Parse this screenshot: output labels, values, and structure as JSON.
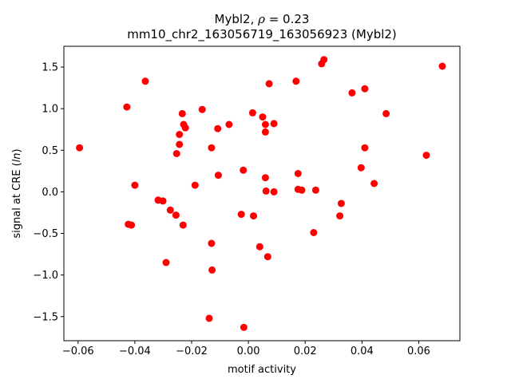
{
  "chart_data": {
    "type": "scatter",
    "title_line1": "Mybl2, ",
    "title_rho": "ρ",
    "title_rho_value": " = 0.23",
    "title_line2": "mm10_chr2_163056719_163056923 (Mybl2)",
    "xlabel": "motif activity",
    "ylabel_prefix": "signal at CRE (",
    "ylabel_italic": "ln",
    "ylabel_suffix": ")",
    "xlim": [
      -0.065,
      0.0745
    ],
    "ylim": [
      -1.79,
      1.75
    ],
    "xticks": [
      -0.06,
      -0.04,
      -0.02,
      0.0,
      0.02,
      0.04,
      0.06
    ],
    "xtick_labels": [
      "−0.06",
      "−0.04",
      "−0.02",
      "0.00",
      "0.02",
      "0.04",
      "0.06"
    ],
    "yticks": [
      -1.5,
      -1.0,
      -0.5,
      0.0,
      0.5,
      1.0,
      1.5
    ],
    "ytick_labels": [
      "−1.5",
      "−1.0",
      "−0.5",
      "0.0",
      "0.5",
      "1.0",
      "1.5"
    ],
    "grid": false,
    "marker_color": "#ff0000",
    "points": [
      {
        "x": -0.0595,
        "y": 0.53
      },
      {
        "x": -0.0428,
        "y": 1.02
      },
      {
        "x": -0.0363,
        "y": 1.33
      },
      {
        "x": -0.0423,
        "y": -0.39
      },
      {
        "x": -0.0412,
        "y": -0.4
      },
      {
        "x": -0.04,
        "y": 0.08
      },
      {
        "x": -0.0318,
        "y": -0.1
      },
      {
        "x": -0.0301,
        "y": -0.11
      },
      {
        "x": -0.029,
        "y": -0.85
      },
      {
        "x": -0.0275,
        "y": -0.22
      },
      {
        "x": -0.0255,
        "y": -0.28
      },
      {
        "x": -0.0253,
        "y": 0.46
      },
      {
        "x": -0.0243,
        "y": 0.57
      },
      {
        "x": -0.0243,
        "y": 0.69
      },
      {
        "x": -0.0233,
        "y": 0.94
      },
      {
        "x": -0.0228,
        "y": 0.81
      },
      {
        "x": -0.0222,
        "y": 0.77
      },
      {
        "x": -0.023,
        "y": -0.4
      },
      {
        "x": -0.0188,
        "y": 0.08
      },
      {
        "x": -0.0163,
        "y": 0.99
      },
      {
        "x": -0.0138,
        "y": -1.52
      },
      {
        "x": -0.013,
        "y": 0.53
      },
      {
        "x": -0.013,
        "y": -0.62
      },
      {
        "x": -0.0128,
        "y": -0.94
      },
      {
        "x": -0.0108,
        "y": 0.76
      },
      {
        "x": -0.0106,
        "y": 0.2
      },
      {
        "x": -0.0068,
        "y": 0.81
      },
      {
        "x": -0.0025,
        "y": -0.27
      },
      {
        "x": -0.0018,
        "y": 0.26
      },
      {
        "x": -0.0016,
        "y": -1.63
      },
      {
        "x": 0.0015,
        "y": 0.95
      },
      {
        "x": 0.0018,
        "y": -0.29
      },
      {
        "x": 0.004,
        "y": -0.66
      },
      {
        "x": 0.005,
        "y": 0.9
      },
      {
        "x": 0.006,
        "y": 0.81
      },
      {
        "x": 0.006,
        "y": 0.72
      },
      {
        "x": 0.006,
        "y": 0.17
      },
      {
        "x": 0.0062,
        "y": 0.01
      },
      {
        "x": 0.0068,
        "y": -0.78
      },
      {
        "x": 0.0073,
        "y": 1.3
      },
      {
        "x": 0.009,
        "y": 0.82
      },
      {
        "x": 0.009,
        "y": 0.0
      },
      {
        "x": 0.0168,
        "y": 1.33
      },
      {
        "x": 0.0175,
        "y": 0.22
      },
      {
        "x": 0.0175,
        "y": 0.03
      },
      {
        "x": 0.0188,
        "y": 0.02
      },
      {
        "x": 0.023,
        "y": -0.49
      },
      {
        "x": 0.0237,
        "y": 0.02
      },
      {
        "x": 0.0258,
        "y": 1.54
      },
      {
        "x": 0.0266,
        "y": 1.59
      },
      {
        "x": 0.0322,
        "y": -0.29
      },
      {
        "x": 0.0327,
        "y": -0.14
      },
      {
        "x": 0.0365,
        "y": 1.19
      },
      {
        "x": 0.0397,
        "y": 0.29
      },
      {
        "x": 0.041,
        "y": 1.24
      },
      {
        "x": 0.041,
        "y": 0.53
      },
      {
        "x": 0.0443,
        "y": 0.1
      },
      {
        "x": 0.0485,
        "y": 0.94
      },
      {
        "x": 0.0627,
        "y": 0.44
      },
      {
        "x": 0.0683,
        "y": 1.51
      }
    ]
  }
}
